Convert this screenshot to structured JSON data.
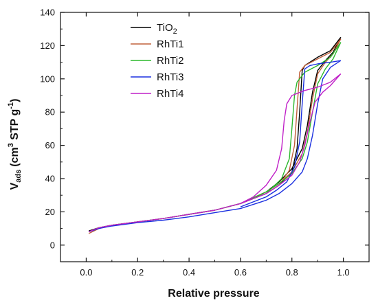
{
  "chart_data": {
    "type": "line",
    "xlabel": "Relative pressure",
    "ylabel_parts": {
      "main": "V",
      "sub": "ads",
      "unit_open": "(cm",
      "sup3": "3",
      "unit_mid": " STP g",
      "supm1": "-1",
      "unit_close": ")"
    },
    "xlim": [
      -0.1,
      1.1
    ],
    "ylim": [
      -10,
      140
    ],
    "xticks": [
      0.0,
      0.2,
      0.4,
      0.6,
      0.8,
      1.0
    ],
    "xtick_labels": [
      "0.0",
      "0.2",
      "0.4",
      "0.6",
      "0.8",
      "1.0"
    ],
    "yticks": [
      0,
      20,
      40,
      60,
      80,
      100,
      120,
      140
    ],
    "ytick_labels": [
      "0",
      "20",
      "40",
      "60",
      "80",
      "100",
      "120",
      "140"
    ],
    "legend_position": "top-left",
    "grid": false,
    "series": [
      {
        "name": "TiO2",
        "legend_main": "TiO",
        "legend_sub": "2",
        "color": "#000000",
        "adsorption": [
          [
            0.01,
            8.5
          ],
          [
            0.05,
            10.5
          ],
          [
            0.1,
            12
          ],
          [
            0.2,
            14
          ],
          [
            0.3,
            16
          ],
          [
            0.4,
            18.5
          ],
          [
            0.5,
            21
          ],
          [
            0.6,
            25
          ],
          [
            0.7,
            32
          ],
          [
            0.75,
            38
          ],
          [
            0.8,
            46
          ],
          [
            0.84,
            58
          ],
          [
            0.86,
            72
          ],
          [
            0.88,
            92
          ],
          [
            0.9,
            105
          ],
          [
            0.93,
            111
          ],
          [
            0.96,
            116
          ],
          [
            0.99,
            125
          ]
        ],
        "desorption": [
          [
            0.99,
            125
          ],
          [
            0.95,
            117
          ],
          [
            0.9,
            113
          ],
          [
            0.85,
            108
          ],
          [
            0.84,
            105
          ],
          [
            0.83,
            80
          ],
          [
            0.82,
            58
          ],
          [
            0.8,
            44
          ],
          [
            0.75,
            36
          ],
          [
            0.7,
            31
          ],
          [
            0.6,
            25
          ]
        ]
      },
      {
        "name": "RhTi1",
        "legend_main": "RhTi1",
        "legend_sub": "",
        "color": "#c0603a",
        "adsorption": [
          [
            0.01,
            7
          ],
          [
            0.05,
            10
          ],
          [
            0.1,
            12
          ],
          [
            0.2,
            14
          ],
          [
            0.3,
            16
          ],
          [
            0.4,
            18.5
          ],
          [
            0.5,
            21
          ],
          [
            0.6,
            25
          ],
          [
            0.7,
            32
          ],
          [
            0.75,
            37
          ],
          [
            0.8,
            44
          ],
          [
            0.84,
            55
          ],
          [
            0.86,
            68
          ],
          [
            0.88,
            88
          ],
          [
            0.9,
            103
          ],
          [
            0.93,
            110
          ],
          [
            0.96,
            115
          ],
          [
            0.99,
            124
          ]
        ],
        "desorption": [
          [
            0.99,
            124
          ],
          [
            0.95,
            116
          ],
          [
            0.9,
            112
          ],
          [
            0.85,
            108
          ],
          [
            0.83,
            104
          ],
          [
            0.82,
            82
          ],
          [
            0.81,
            60
          ],
          [
            0.79,
            45
          ],
          [
            0.75,
            36
          ],
          [
            0.7,
            31
          ],
          [
            0.6,
            25
          ]
        ]
      },
      {
        "name": "RhTi2",
        "legend_main": "RhTi2",
        "legend_sub": "",
        "color": "#2cb82c",
        "adsorption": [
          [
            0.01,
            8
          ],
          [
            0.05,
            10.5
          ],
          [
            0.1,
            12
          ],
          [
            0.2,
            14
          ],
          [
            0.3,
            16
          ],
          [
            0.4,
            18.5
          ],
          [
            0.5,
            21
          ],
          [
            0.6,
            25
          ],
          [
            0.7,
            32
          ],
          [
            0.75,
            37
          ],
          [
            0.8,
            43
          ],
          [
            0.84,
            52
          ],
          [
            0.86,
            62
          ],
          [
            0.88,
            80
          ],
          [
            0.9,
            97
          ],
          [
            0.93,
            106
          ],
          [
            0.96,
            112
          ],
          [
            0.99,
            122
          ]
        ],
        "desorption": [
          [
            0.99,
            122
          ],
          [
            0.95,
            113
          ],
          [
            0.9,
            108
          ],
          [
            0.85,
            104
          ],
          [
            0.82,
            98
          ],
          [
            0.81,
            90
          ],
          [
            0.8,
            70
          ],
          [
            0.79,
            52
          ],
          [
            0.76,
            40
          ],
          [
            0.7,
            31
          ],
          [
            0.6,
            25
          ]
        ]
      },
      {
        "name": "RhTi3",
        "legend_main": "RhTi3",
        "legend_sub": "",
        "color": "#1a2fe0",
        "adsorption": [
          [
            0.01,
            8
          ],
          [
            0.05,
            10
          ],
          [
            0.1,
            11.5
          ],
          [
            0.2,
            13.5
          ],
          [
            0.3,
            15
          ],
          [
            0.4,
            17
          ],
          [
            0.5,
            19.5
          ],
          [
            0.6,
            22
          ],
          [
            0.7,
            27
          ],
          [
            0.75,
            31
          ],
          [
            0.8,
            37
          ],
          [
            0.84,
            44
          ],
          [
            0.86,
            52
          ],
          [
            0.88,
            66
          ],
          [
            0.9,
            85
          ],
          [
            0.92,
            100
          ],
          [
            0.95,
            107
          ],
          [
            0.99,
            111
          ]
        ],
        "desorption": [
          [
            0.99,
            111
          ],
          [
            0.95,
            110
          ],
          [
            0.9,
            109
          ],
          [
            0.87,
            108
          ],
          [
            0.85,
            106
          ],
          [
            0.84,
            85
          ],
          [
            0.83,
            62
          ],
          [
            0.81,
            47
          ],
          [
            0.78,
            38
          ],
          [
            0.74,
            33
          ],
          [
            0.7,
            29
          ],
          [
            0.6,
            23
          ]
        ]
      },
      {
        "name": "RhTi4",
        "legend_main": "RhTi4",
        "legend_sub": "",
        "color": "#c020c8",
        "adsorption": [
          [
            0.01,
            8
          ],
          [
            0.05,
            10.5
          ],
          [
            0.1,
            12
          ],
          [
            0.2,
            14
          ],
          [
            0.3,
            16
          ],
          [
            0.4,
            18.5
          ],
          [
            0.5,
            21
          ],
          [
            0.6,
            25
          ],
          [
            0.7,
            31
          ],
          [
            0.75,
            36
          ],
          [
            0.8,
            42
          ],
          [
            0.83,
            50
          ],
          [
            0.85,
            60
          ],
          [
            0.87,
            74
          ],
          [
            0.89,
            86
          ],
          [
            0.92,
            92
          ],
          [
            0.95,
            96
          ],
          [
            0.99,
            103
          ]
        ],
        "desorption": [
          [
            0.99,
            103
          ],
          [
            0.95,
            98
          ],
          [
            0.9,
            95
          ],
          [
            0.85,
            93
          ],
          [
            0.8,
            90
          ],
          [
            0.78,
            85
          ],
          [
            0.77,
            75
          ],
          [
            0.76,
            58
          ],
          [
            0.74,
            45
          ],
          [
            0.7,
            36
          ],
          [
            0.65,
            29
          ],
          [
            0.6,
            25
          ]
        ]
      }
    ]
  }
}
